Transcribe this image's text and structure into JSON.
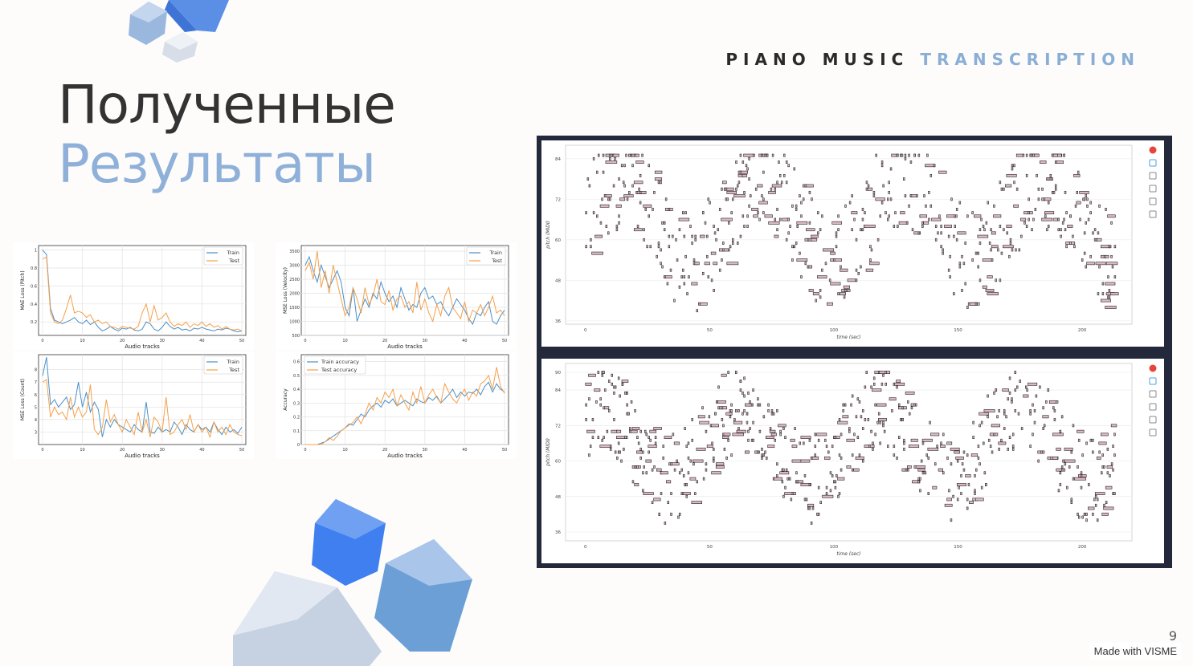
{
  "header": {
    "brand_part1": "PIANO MUSIC",
    "brand_part2": "TRANSCRIPTION"
  },
  "title": {
    "line1": "Полученные",
    "line2": "Результаты"
  },
  "colors": {
    "train": "#4a8fc7",
    "test": "#f5a04a",
    "note_fill": "#dcb8c2",
    "note_stroke": "#222222",
    "panel_bg": "#23293a",
    "accent": "#8fb0d8"
  },
  "chart_data": [
    {
      "type": "line",
      "xlabel": "Audio tracks",
      "ylabel": "MAE Loss (Pitch)",
      "xticks": [
        0,
        10,
        20,
        30,
        40,
        50
      ],
      "yticks": [
        0.2,
        0.4,
        0.6,
        0.8,
        1.0
      ],
      "ylim": [
        0.05,
        1.05
      ],
      "legend": "top-right",
      "grid": true,
      "series": [
        {
          "name": "Train",
          "color": "train",
          "values": [
            1.0,
            0.95,
            0.35,
            0.22,
            0.2,
            0.18,
            0.2,
            0.22,
            0.25,
            0.2,
            0.18,
            0.22,
            0.17,
            0.2,
            0.14,
            0.1,
            0.12,
            0.15,
            0.12,
            0.1,
            0.13,
            0.12,
            0.14,
            0.11,
            0.1,
            0.12,
            0.2,
            0.18,
            0.12,
            0.1,
            0.14,
            0.2,
            0.15,
            0.12,
            0.14,
            0.11,
            0.12,
            0.1,
            0.13,
            0.12,
            0.14,
            0.12,
            0.11,
            0.1,
            0.12,
            0.11,
            0.13,
            0.12,
            0.1,
            0.09,
            0.1
          ]
        },
        {
          "name": "Test",
          "color": "test",
          "values": [
            0.9,
            0.92,
            0.3,
            0.2,
            0.18,
            0.22,
            0.35,
            0.5,
            0.3,
            0.32,
            0.3,
            0.25,
            0.28,
            0.2,
            0.22,
            0.18,
            0.2,
            0.15,
            0.14,
            0.12,
            0.15,
            0.14,
            0.13,
            0.12,
            0.15,
            0.3,
            0.4,
            0.2,
            0.38,
            0.22,
            0.25,
            0.3,
            0.2,
            0.15,
            0.18,
            0.16,
            0.2,
            0.14,
            0.18,
            0.16,
            0.2,
            0.15,
            0.18,
            0.14,
            0.16,
            0.12,
            0.15,
            0.12,
            0.11,
            0.12,
            0.1
          ]
        }
      ]
    },
    {
      "type": "line",
      "xlabel": "Audio tracks",
      "ylabel": "MSE Loss (Velocity)",
      "xticks": [
        0,
        10,
        20,
        30,
        40,
        50
      ],
      "yticks": [
        500,
        1000,
        1500,
        2000,
        2500,
        3000,
        3500
      ],
      "ylim": [
        500,
        3700
      ],
      "legend": "top-right",
      "grid": true,
      "series": [
        {
          "name": "Train",
          "color": "train",
          "values": [
            3000,
            3300,
            2800,
            2400,
            3000,
            2600,
            2200,
            2500,
            2800,
            2400,
            1500,
            1200,
            2200,
            1000,
            1400,
            1800,
            1500,
            2000,
            1800,
            2400,
            2000,
            1700,
            1900,
            1500,
            2200,
            1800,
            1400,
            1600,
            1500,
            2000,
            2200,
            1800,
            1900,
            1600,
            1700,
            1400,
            1200,
            1500,
            1800,
            1600,
            1400,
            1100,
            900,
            1300,
            1200,
            1500,
            1700,
            1000,
            900,
            1200,
            1400
          ]
        },
        {
          "name": "Test",
          "color": "test",
          "values": [
            2800,
            3100,
            2500,
            3500,
            2200,
            2800,
            2000,
            3000,
            2400,
            1800,
            1200,
            1500,
            2200,
            1800,
            1300,
            2200,
            1600,
            1900,
            2500,
            1700,
            1600,
            2100,
            1400,
            1800,
            1900,
            1500,
            1700,
            1300,
            2400,
            1400,
            1800,
            1300,
            1000,
            1600,
            1200,
            1900,
            2200,
            1500,
            1300,
            1100,
            1700,
            1000,
            1400,
            1300,
            1600,
            1200,
            1500,
            1900,
            1300,
            1400,
            1200
          ]
        }
      ]
    },
    {
      "type": "line",
      "xlabel": "Audio tracks",
      "ylabel": "MSE Loss (Count)",
      "xticks": [
        0,
        10,
        20,
        30,
        40,
        50
      ],
      "yticks": [
        3,
        4,
        5,
        6,
        7,
        8
      ],
      "ylim": [
        2,
        9.2
      ],
      "legend": "top-right",
      "grid": true,
      "series": [
        {
          "name": "Train",
          "color": "train",
          "values": [
            7.5,
            9.0,
            5.2,
            5.6,
            5.0,
            5.4,
            5.8,
            4.8,
            5.2,
            7.0,
            5.0,
            6.2,
            4.6,
            5.4,
            4.8,
            2.6,
            4.0,
            3.4,
            4.0,
            3.6,
            3.4,
            3.2,
            3.0,
            3.6,
            3.2,
            3.0,
            5.4,
            3.0,
            2.9,
            3.4,
            3.0,
            3.2,
            3.0,
            3.8,
            3.4,
            2.8,
            3.6,
            3.2,
            3.0,
            3.6,
            3.2,
            3.4,
            3.0,
            3.8,
            3.2,
            2.8,
            3.4,
            3.0,
            3.2,
            2.9,
            3.4
          ]
        },
        {
          "name": "Test",
          "color": "test",
          "values": [
            7.0,
            7.2,
            4.2,
            5.0,
            4.4,
            4.6,
            4.0,
            5.8,
            4.2,
            5.0,
            4.2,
            4.6,
            6.8,
            3.2,
            2.8,
            3.4,
            5.6,
            3.8,
            4.4,
            3.6,
            3.0,
            4.0,
            3.4,
            2.8,
            4.6,
            3.0,
            4.0,
            2.6,
            4.2,
            3.8,
            3.0,
            5.8,
            2.8,
            3.0,
            3.6,
            4.0,
            3.2,
            4.4,
            3.0,
            3.6,
            3.0,
            3.4,
            2.6,
            3.8,
            3.0,
            3.4,
            2.8,
            3.6,
            3.0,
            2.8,
            2.7
          ]
        }
      ]
    },
    {
      "type": "line",
      "xlabel": "Audio tracks",
      "ylabel": "Accuracy",
      "xticks": [
        0,
        10,
        20,
        30,
        40,
        50
      ],
      "yticks": [
        0.0,
        0.1,
        0.2,
        0.3,
        0.4,
        0.5,
        0.6
      ],
      "ylim": [
        0,
        0.65
      ],
      "legend": "top-left",
      "grid": true,
      "series": [
        {
          "name": "Train accuracy",
          "color": "train",
          "values": [
            0.0,
            0.0,
            0.0,
            0.0,
            0.01,
            0.02,
            0.04,
            0.06,
            0.08,
            0.1,
            0.12,
            0.15,
            0.14,
            0.18,
            0.22,
            0.2,
            0.25,
            0.28,
            0.3,
            0.27,
            0.32,
            0.3,
            0.33,
            0.28,
            0.3,
            0.32,
            0.3,
            0.28,
            0.33,
            0.31,
            0.3,
            0.34,
            0.32,
            0.35,
            0.3,
            0.33,
            0.36,
            0.4,
            0.34,
            0.38,
            0.35,
            0.38,
            0.37,
            0.4,
            0.36,
            0.42,
            0.45,
            0.38,
            0.44,
            0.4,
            0.38
          ]
        },
        {
          "name": "Test accuracy",
          "color": "test",
          "values": [
            0.0,
            0.0,
            0.0,
            0.0,
            0.0,
            0.02,
            0.05,
            0.03,
            0.06,
            0.1,
            0.12,
            0.14,
            0.16,
            0.2,
            0.15,
            0.22,
            0.3,
            0.25,
            0.34,
            0.3,
            0.38,
            0.34,
            0.4,
            0.28,
            0.36,
            0.3,
            0.25,
            0.38,
            0.3,
            0.42,
            0.3,
            0.36,
            0.4,
            0.34,
            0.3,
            0.44,
            0.38,
            0.33,
            0.3,
            0.36,
            0.4,
            0.32,
            0.38,
            0.35,
            0.44,
            0.46,
            0.5,
            0.4,
            0.56,
            0.42,
            0.37
          ]
        }
      ]
    }
  ],
  "piano_rolls": [
    {
      "xlabel": "time (sec)",
      "ylabel": "pitch (MIDI)",
      "xticks": [
        0,
        50,
        100,
        150,
        200
      ],
      "yticks": [
        36,
        48,
        60,
        72,
        84
      ],
      "xlim": [
        -8,
        220
      ],
      "ylim": [
        35,
        88
      ],
      "seed": 7
    },
    {
      "xlabel": "time (sec)",
      "ylabel": "pitch (MIDI)",
      "xticks": [
        0,
        50,
        100,
        150,
        200
      ],
      "yticks": [
        36,
        48,
        60,
        72,
        84,
        90
      ],
      "xlim": [
        -8,
        220
      ],
      "ylim": [
        33,
        93
      ],
      "seed": 19
    }
  ],
  "footer": {
    "page_number": "9",
    "watermark": "Made with VISME"
  }
}
